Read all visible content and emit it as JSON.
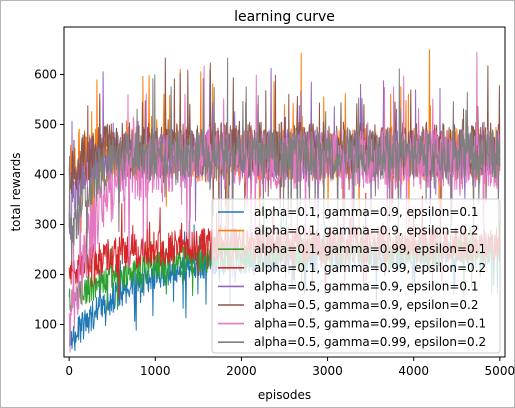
{
  "chart_data": {
    "type": "line",
    "title": "learning curve",
    "xlabel": "episodes",
    "ylabel": "total rewards",
    "xlim": [
      -60,
      5060
    ],
    "ylim": [
      35,
      695
    ],
    "xticks": [
      0,
      1000,
      2000,
      3000,
      4000,
      5000
    ],
    "yticks": [
      100,
      200,
      300,
      400,
      500,
      600
    ],
    "legend_position": "lower-right",
    "series": [
      {
        "name": "alpha=0.1, gamma=0.9, epsilon=0.1",
        "color": "#1f77b4",
        "start": 60,
        "plateau": 240,
        "rise": 700,
        "noise": 30,
        "spike": 80
      },
      {
        "name": "alpha=0.1, gamma=0.9, epsilon=0.2",
        "color": "#ff7f0e",
        "start": 410,
        "plateau": 440,
        "rise": 60,
        "noise": 55,
        "spike": 170
      },
      {
        "name": "alpha=0.1, gamma=0.99, epsilon=0.1",
        "color": "#2ca02c",
        "start": 150,
        "plateau": 250,
        "rise": 900,
        "noise": 30,
        "spike": 70
      },
      {
        "name": "alpha=0.1, gamma=0.99, epsilon=0.2",
        "color": "#d62728",
        "start": 200,
        "plateau": 260,
        "rise": 500,
        "noise": 35,
        "spike": 80
      },
      {
        "name": "alpha=0.5, gamma=0.9, epsilon=0.1",
        "color": "#9467bd",
        "start": 300,
        "plateau": 440,
        "rise": 120,
        "noise": 50,
        "spike": 150
      },
      {
        "name": "alpha=0.5, gamma=0.9, epsilon=0.2",
        "color": "#8c564b",
        "start": 380,
        "plateau": 450,
        "rise": 150,
        "noise": 55,
        "spike": 140
      },
      {
        "name": "alpha=0.5, gamma=0.99, epsilon=0.1",
        "color": "#e377c2",
        "start": 80,
        "plateau": 430,
        "rise": 300,
        "noise": 60,
        "spike": 200
      },
      {
        "name": "alpha=0.5, gamma=0.99, epsilon=0.2",
        "color": "#7f7f7f",
        "start": 250,
        "plateau": 440,
        "rise": 200,
        "noise": 50,
        "spike": 170
      }
    ]
  }
}
